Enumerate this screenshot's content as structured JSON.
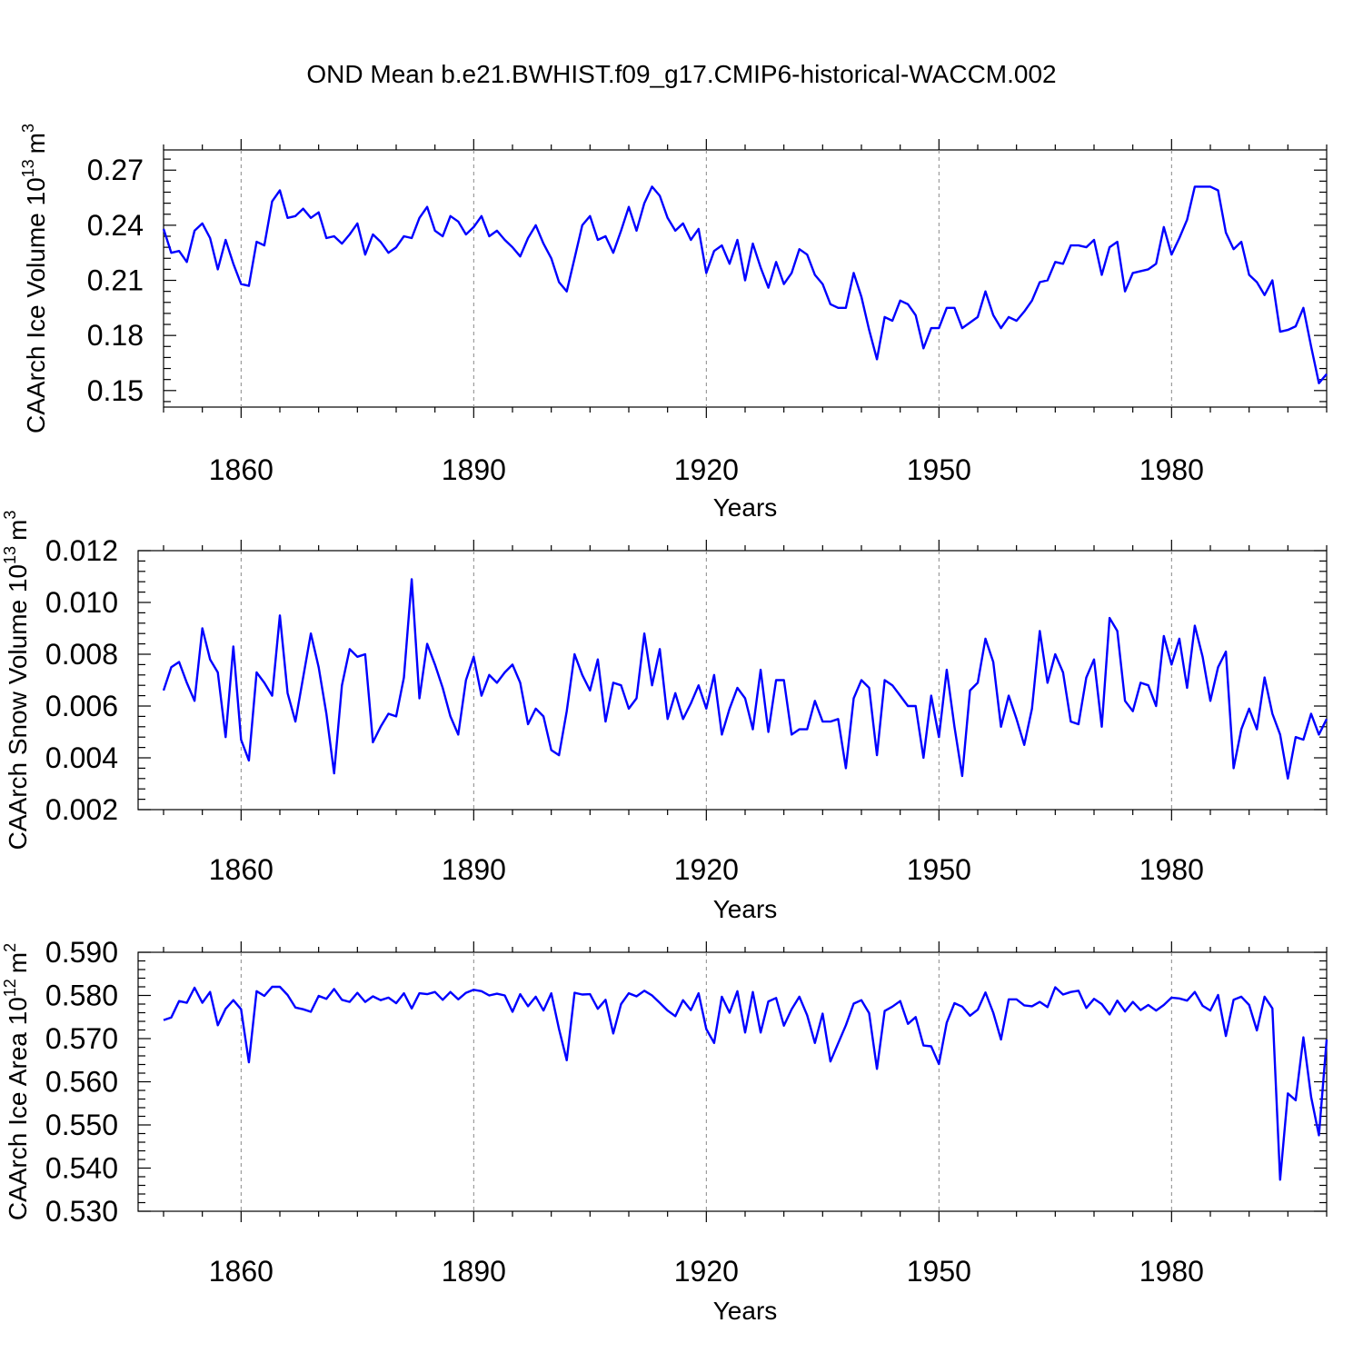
{
  "figure": {
    "title": "OND Mean b.e21.BWHIST.f09_g17.CMIP6-historical-WACCM.002",
    "line_color": "#0000ff"
  },
  "chart_data": [
    {
      "type": "line",
      "name": "ice-volume",
      "ylabel_main": "CAArch Ice Volume 10",
      "ylabel_exp": "13",
      "ylabel_unit": "m",
      "ylabel_unit_exp": "3",
      "xlabel": "Years",
      "xlim": [
        1850,
        2000
      ],
      "ylim": [
        0.141,
        0.281
      ],
      "xticks": [
        1860,
        1890,
        1920,
        1950,
        1980
      ],
      "xtick_labels": [
        "1860",
        "1890",
        "1920",
        "1950",
        "1980"
      ],
      "yticks": [
        0.15,
        0.18,
        0.21,
        0.24,
        0.27
      ],
      "ytick_labels": [
        "0.15",
        "0.18",
        "0.21",
        "0.24",
        "0.27"
      ],
      "x_start": 1850,
      "values": [
        0.238,
        0.225,
        0.226,
        0.22,
        0.237,
        0.241,
        0.233,
        0.216,
        0.232,
        0.219,
        0.208,
        0.207,
        0.231,
        0.229,
        0.253,
        0.259,
        0.244,
        0.245,
        0.249,
        0.244,
        0.247,
        0.233,
        0.234,
        0.23,
        0.235,
        0.241,
        0.224,
        0.235,
        0.231,
        0.225,
        0.228,
        0.234,
        0.233,
        0.244,
        0.25,
        0.237,
        0.234,
        0.245,
        0.242,
        0.235,
        0.239,
        0.245,
        0.234,
        0.237,
        0.232,
        0.228,
        0.223,
        0.233,
        0.24,
        0.23,
        0.222,
        0.209,
        0.204,
        0.222,
        0.24,
        0.245,
        0.232,
        0.234,
        0.225,
        0.237,
        0.25,
        0.237,
        0.252,
        0.261,
        0.256,
        0.244,
        0.237,
        0.241,
        0.232,
        0.238,
        0.214,
        0.226,
        0.229,
        0.219,
        0.232,
        0.21,
        0.23,
        0.217,
        0.206,
        0.22,
        0.208,
        0.214,
        0.227,
        0.224,
        0.213,
        0.208,
        0.197,
        0.195,
        0.195,
        0.214,
        0.201,
        0.183,
        0.167,
        0.19,
        0.188,
        0.199,
        0.197,
        0.191,
        0.173,
        0.184,
        0.184,
        0.195,
        0.195,
        0.184,
        0.187,
        0.19,
        0.204,
        0.191,
        0.184,
        0.19,
        0.188,
        0.193,
        0.199,
        0.209,
        0.21,
        0.22,
        0.219,
        0.229,
        0.229,
        0.228,
        0.232,
        0.213,
        0.228,
        0.231,
        0.204,
        0.214,
        0.215,
        0.216,
        0.219,
        0.239,
        0.224,
        0.233,
        0.243,
        0.261,
        0.261,
        0.261,
        0.259,
        0.236,
        0.227,
        0.231,
        0.213,
        0.209,
        0.202,
        0.21,
        0.182,
        0.183,
        0.185,
        0.195,
        0.174,
        0.154,
        0.159
      ]
    },
    {
      "type": "line",
      "name": "snow-volume",
      "ylabel_main": "CAArch Snow Volume 10",
      "ylabel_exp": "13",
      "ylabel_unit": "m",
      "ylabel_unit_exp": "3",
      "xlabel": "Years",
      "xlim": [
        1850,
        2000
      ],
      "ylim": [
        0.002,
        0.012
      ],
      "xticks": [
        1860,
        1890,
        1920,
        1950,
        1980
      ],
      "xtick_labels": [
        "1860",
        "1890",
        "1920",
        "1950",
        "1980"
      ],
      "yticks": [
        0.002,
        0.004,
        0.006,
        0.008,
        0.01,
        0.012
      ],
      "ytick_labels": [
        "0.002",
        "0.004",
        "0.006",
        "0.008",
        "0.010",
        "0.012"
      ],
      "x_start": 1850,
      "values": [
        0.0066,
        0.0075,
        0.0077,
        0.0069,
        0.0062,
        0.009,
        0.0078,
        0.0073,
        0.0048,
        0.0083,
        0.0047,
        0.0039,
        0.0073,
        0.0069,
        0.0064,
        0.0095,
        0.0065,
        0.0054,
        0.0071,
        0.0088,
        0.0075,
        0.0057,
        0.0034,
        0.0068,
        0.0082,
        0.0079,
        0.008,
        0.0046,
        0.0052,
        0.0057,
        0.0056,
        0.0071,
        0.0109,
        0.0063,
        0.0084,
        0.0076,
        0.0067,
        0.0056,
        0.0049,
        0.007,
        0.0079,
        0.0064,
        0.0072,
        0.0069,
        0.0073,
        0.0076,
        0.0069,
        0.0053,
        0.0059,
        0.0056,
        0.0043,
        0.0041,
        0.0058,
        0.008,
        0.0072,
        0.0066,
        0.0078,
        0.0054,
        0.0069,
        0.0068,
        0.0059,
        0.0063,
        0.0088,
        0.0068,
        0.0082,
        0.0055,
        0.0065,
        0.0055,
        0.0061,
        0.0068,
        0.0059,
        0.0072,
        0.0049,
        0.0059,
        0.0067,
        0.0063,
        0.0051,
        0.0074,
        0.005,
        0.007,
        0.007,
        0.0049,
        0.0051,
        0.0051,
        0.0062,
        0.0054,
        0.0054,
        0.0055,
        0.0036,
        0.0063,
        0.007,
        0.0067,
        0.0041,
        0.007,
        0.0068,
        0.0064,
        0.006,
        0.006,
        0.004,
        0.0064,
        0.0048,
        0.0074,
        0.0052,
        0.0033,
        0.0066,
        0.0069,
        0.0086,
        0.0077,
        0.0052,
        0.0064,
        0.0055,
        0.0045,
        0.0059,
        0.0089,
        0.0069,
        0.008,
        0.0073,
        0.0054,
        0.0053,
        0.0071,
        0.0078,
        0.0052,
        0.0094,
        0.0089,
        0.0062,
        0.0058,
        0.0069,
        0.0068,
        0.006,
        0.0087,
        0.0076,
        0.0086,
        0.0067,
        0.0091,
        0.0079,
        0.0062,
        0.0075,
        0.0081,
        0.0036,
        0.0051,
        0.0059,
        0.0051,
        0.0071,
        0.0057,
        0.0049,
        0.0032,
        0.0048,
        0.0047,
        0.0057,
        0.0049,
        0.0055
      ]
    },
    {
      "type": "line",
      "name": "ice-area",
      "ylabel_main": "CAArch Ice Area 10",
      "ylabel_exp": "12",
      "ylabel_unit": "m",
      "ylabel_unit_exp": "2",
      "xlabel": "Years",
      "xlim": [
        1850,
        2000
      ],
      "ylim": [
        0.53,
        0.59
      ],
      "xticks": [
        1860,
        1890,
        1920,
        1950,
        1980
      ],
      "xtick_labels": [
        "1860",
        "1890",
        "1920",
        "1950",
        "1980"
      ],
      "yticks": [
        0.53,
        0.54,
        0.55,
        0.56,
        0.57,
        0.58,
        0.59
      ],
      "ytick_labels": [
        "0.530",
        "0.540",
        "0.550",
        "0.560",
        "0.570",
        "0.580",
        "0.590"
      ],
      "x_start": 1850,
      "values": [
        0.5743,
        0.5749,
        0.5787,
        0.5783,
        0.5818,
        0.5783,
        0.5808,
        0.5731,
        0.5769,
        0.5789,
        0.5768,
        0.5645,
        0.581,
        0.5799,
        0.582,
        0.582,
        0.5801,
        0.5772,
        0.5768,
        0.5762,
        0.5799,
        0.5792,
        0.5815,
        0.579,
        0.5785,
        0.5806,
        0.5785,
        0.5798,
        0.5789,
        0.5795,
        0.5782,
        0.5805,
        0.577,
        0.5805,
        0.5803,
        0.5808,
        0.579,
        0.5808,
        0.5791,
        0.5806,
        0.5813,
        0.581,
        0.58,
        0.5804,
        0.58,
        0.5762,
        0.5803,
        0.5775,
        0.5797,
        0.5765,
        0.5805,
        0.5722,
        0.565,
        0.5806,
        0.5802,
        0.5803,
        0.5769,
        0.579,
        0.5712,
        0.578,
        0.5805,
        0.5798,
        0.5811,
        0.58,
        0.5783,
        0.5765,
        0.5752,
        0.5789,
        0.5766,
        0.5805,
        0.5722,
        0.569,
        0.5797,
        0.576,
        0.581,
        0.5714,
        0.5808,
        0.5714,
        0.5786,
        0.5794,
        0.573,
        0.5768,
        0.5797,
        0.5754,
        0.569,
        0.5758,
        0.5647,
        0.5689,
        0.5731,
        0.5781,
        0.5789,
        0.5759,
        0.563,
        0.5764,
        0.5774,
        0.5787,
        0.5734,
        0.575,
        0.5684,
        0.5682,
        0.5641,
        0.5737,
        0.5782,
        0.5774,
        0.5753,
        0.5767,
        0.5807,
        0.576,
        0.5698,
        0.5791,
        0.5791,
        0.5777,
        0.5775,
        0.5785,
        0.5773,
        0.5819,
        0.5802,
        0.5808,
        0.5811,
        0.5771,
        0.5792,
        0.578,
        0.5756,
        0.5788,
        0.5763,
        0.5785,
        0.5766,
        0.5778,
        0.5765,
        0.5778,
        0.5795,
        0.5793,
        0.5788,
        0.5808,
        0.5776,
        0.5765,
        0.5801,
        0.5706,
        0.579,
        0.5797,
        0.5778,
        0.5719,
        0.5797,
        0.577,
        0.5373,
        0.5573,
        0.5557,
        0.5703,
        0.5565,
        0.5476,
        0.5698
      ]
    }
  ]
}
